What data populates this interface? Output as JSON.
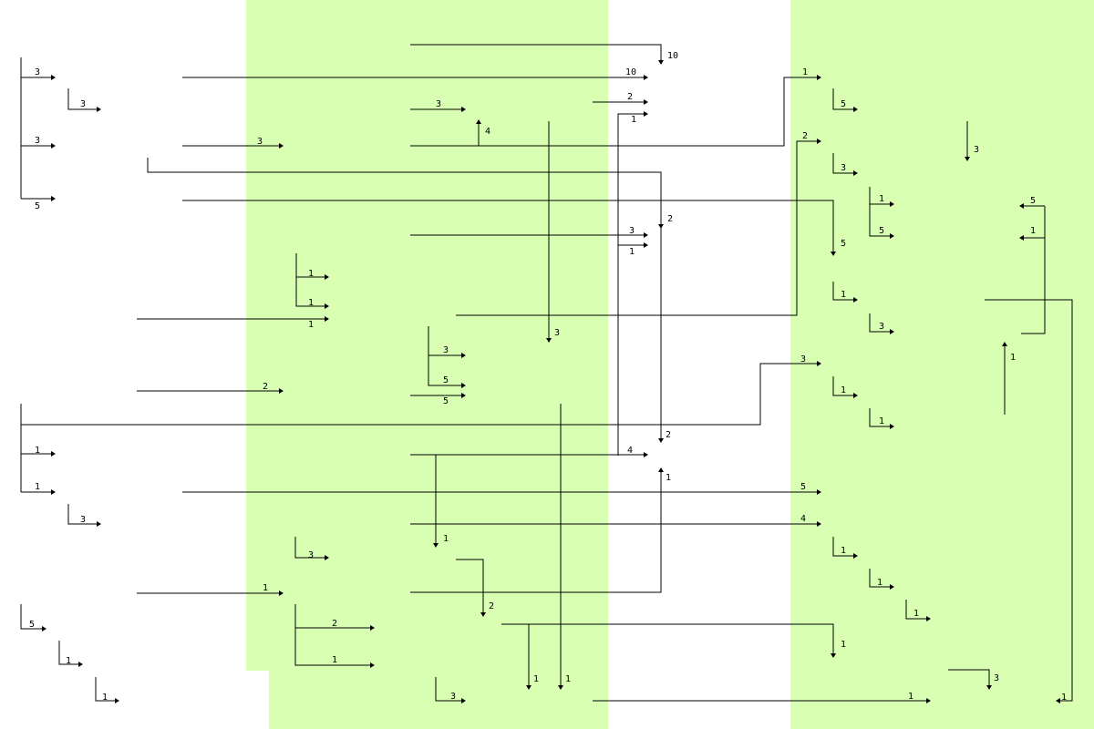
{
  "colors": {
    "background": "#ffffff",
    "band": "#d9ffb3",
    "line": "#000000"
  },
  "labels": {
    "l10a": "10",
    "l10b": "10",
    "lA3": "3",
    "lA3b": "3",
    "lA3c": "3",
    "lA5": "5",
    "lB2": "2",
    "lB3": "3",
    "lB1": "1",
    "lC3": "3",
    "lC2": "2",
    "lC4": "4",
    "lC1": "1",
    "lC5": "5",
    "lD3a": "3",
    "lD3b": "3",
    "lD2a": "2",
    "lD3c": "3",
    "lE1a": "1",
    "lE5a": "5",
    "lE1b": "1",
    "lE5b": "5",
    "lF5": "5",
    "lF1a": "1",
    "lF1b": "1",
    "lF1c": "1",
    "lG1": "1",
    "lG3": "3",
    "lG1b": "1",
    "lG3b": "3",
    "lG1c": "1",
    "lH3": "3",
    "lH5": "5",
    "lH5b": "5",
    "lI2": "2",
    "lI3": "3",
    "lI1": "1",
    "lJ1": "1",
    "lJ2": "2",
    "lJ4": "4",
    "lK1": "1",
    "lK1b": "1",
    "lK1c": "1",
    "lK3": "3",
    "lK5": "5",
    "lL4": "4",
    "lL1": "1",
    "lL3": "3",
    "lL1b": "1",
    "lL1c": "1",
    "lM1": "1",
    "lM1b": "1",
    "lN2": "2",
    "lN2b": "2",
    "lN1": "1",
    "lN1b": "1",
    "lN5": "5",
    "lN1c": "1",
    "lN1d": "1",
    "lO1": "1",
    "lO1b": "1",
    "lO3": "3",
    "lO1c": "1",
    "lO3b": "3",
    "lO1d": "1"
  }
}
